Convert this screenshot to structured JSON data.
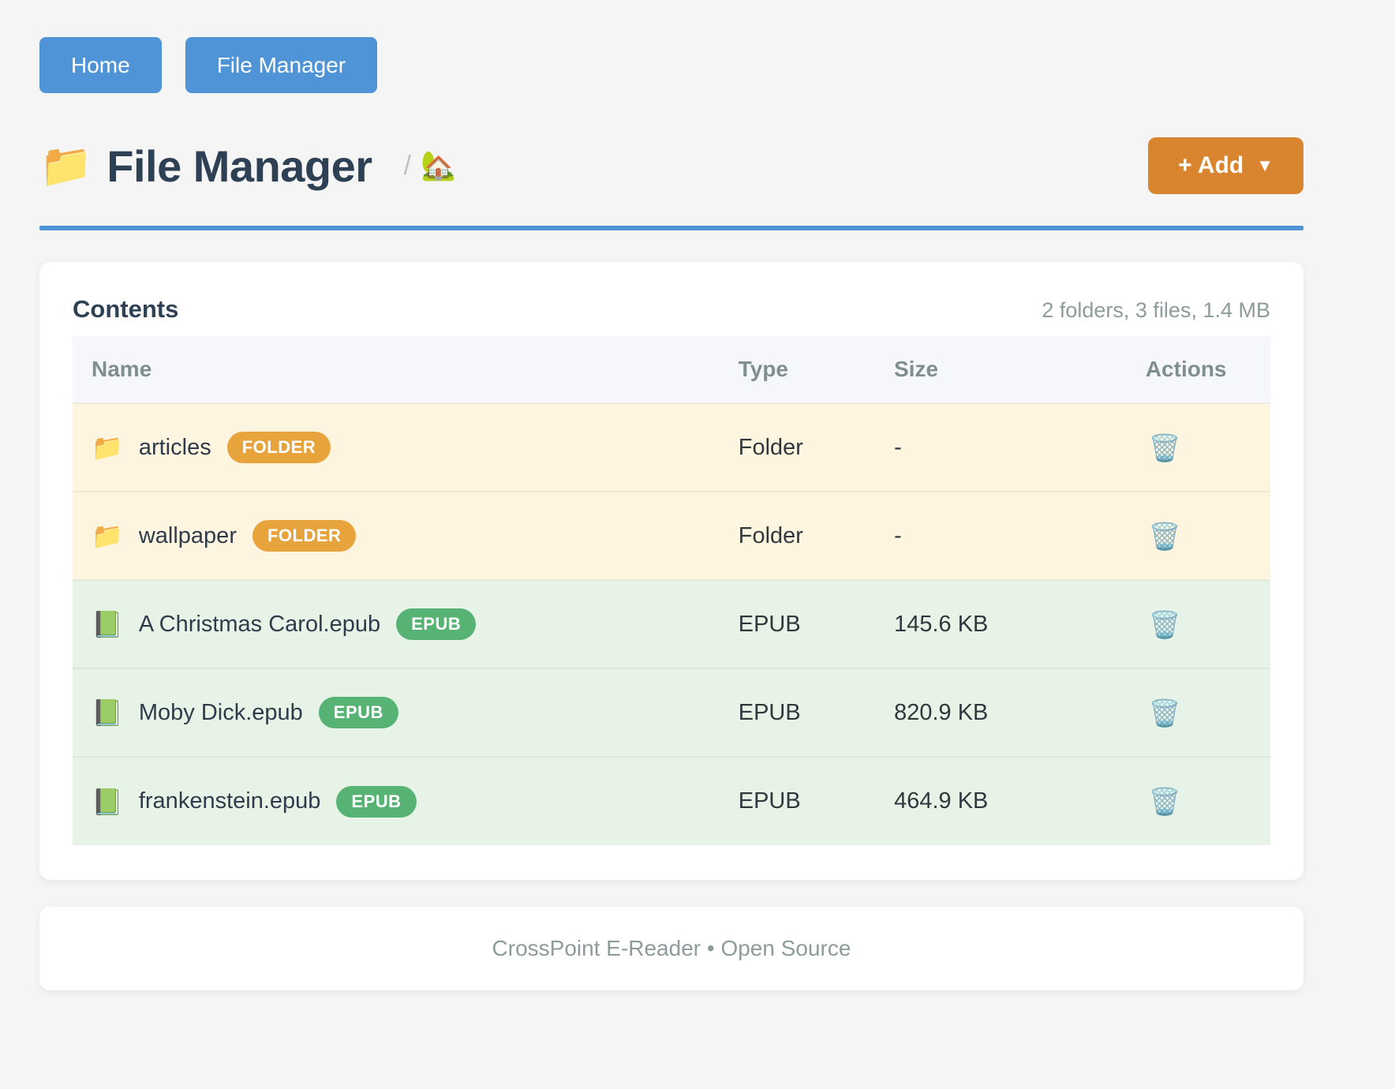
{
  "nav": {
    "home_label": "Home",
    "file_manager_label": "File Manager"
  },
  "header": {
    "folder_icon": "📁",
    "title": "File Manager",
    "breadcrumb_separator": "/",
    "home_icon": "🏡",
    "add_label": "+ Add",
    "add_caret": "▼"
  },
  "contents": {
    "title": "Contents",
    "summary": "2 folders, 3 files, 1.4 MB",
    "columns": {
      "name": "Name",
      "type": "Type",
      "size": "Size",
      "actions": "Actions"
    },
    "rows": [
      {
        "icon": "📁",
        "name": "articles",
        "badge": "FOLDER",
        "kind": "folder",
        "type": "Folder",
        "size": "-",
        "delete_icon": "🗑️"
      },
      {
        "icon": "📁",
        "name": "wallpaper",
        "badge": "FOLDER",
        "kind": "folder",
        "type": "Folder",
        "size": "-",
        "delete_icon": "🗑️"
      },
      {
        "icon": "📗",
        "name": "A Christmas Carol.epub",
        "badge": "EPUB",
        "kind": "epub",
        "type": "EPUB",
        "size": "145.6 KB",
        "delete_icon": "🗑️"
      },
      {
        "icon": "📗",
        "name": "Moby Dick.epub",
        "badge": "EPUB",
        "kind": "epub",
        "type": "EPUB",
        "size": "820.9 KB",
        "delete_icon": "🗑️"
      },
      {
        "icon": "📗",
        "name": "frankenstein.epub",
        "badge": "EPUB",
        "kind": "epub",
        "type": "EPUB",
        "size": "464.9 KB",
        "delete_icon": "🗑️"
      }
    ]
  },
  "footer": {
    "text": "CrossPoint E-Reader • Open Source"
  },
  "colors": {
    "accent_blue": "#4e94d6",
    "accent_orange": "#d9842f",
    "badge_orange": "#e7a33c",
    "badge_green": "#57b374",
    "folder_row_bg": "#fdf5df",
    "epub_row_bg": "#e8f3e8",
    "title_text": "#2e4053",
    "muted_text": "#8d9b9b"
  }
}
